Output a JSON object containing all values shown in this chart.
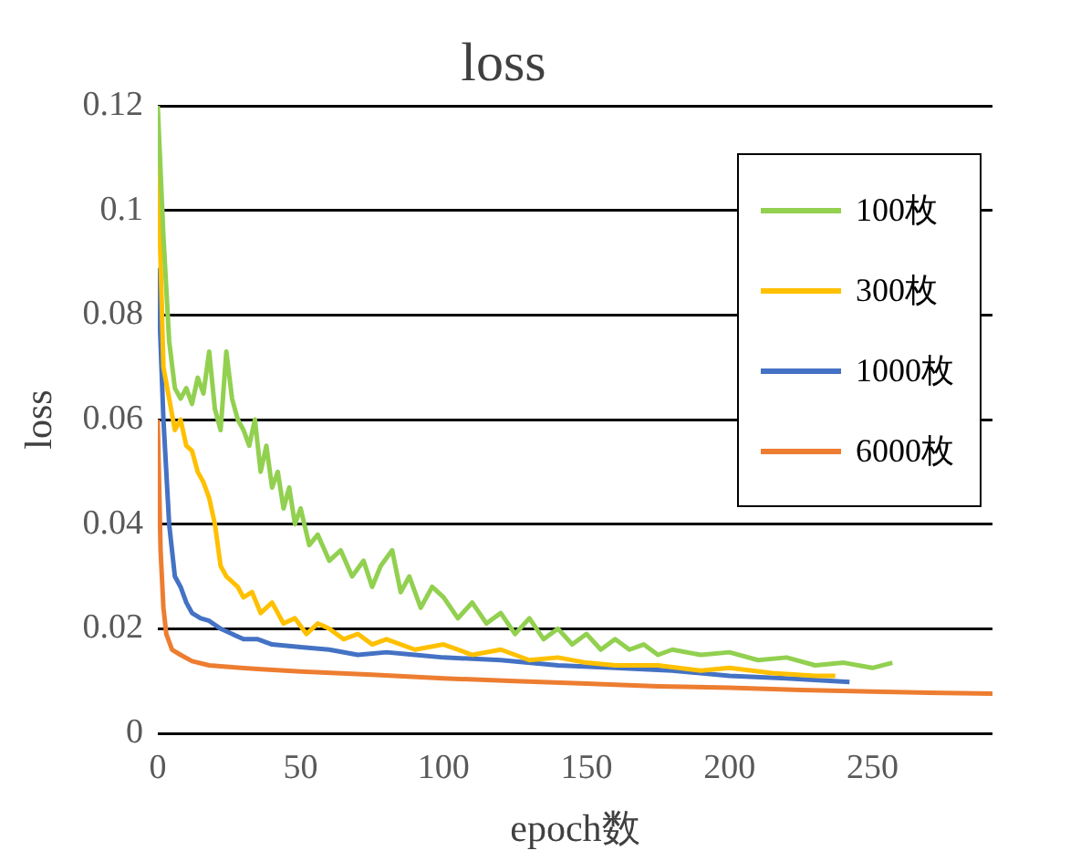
{
  "chart_data": {
    "type": "line",
    "title": "loss",
    "xlabel": "epoch数",
    "ylabel": "loss",
    "xlim": [
      0,
      292
    ],
    "xticks": [
      0,
      50,
      100,
      150,
      200,
      250
    ],
    "ylim": [
      0,
      0.12
    ],
    "yticks": [
      0,
      0.02,
      0.04,
      0.06,
      0.08,
      0.1,
      0.12
    ],
    "grid": "y",
    "legend": "top right",
    "marker": "none",
    "line_style": "solid",
    "series": [
      {
        "name": "100枚",
        "color": "#92d050",
        "x": [
          0,
          2,
          4,
          6,
          8,
          10,
          12,
          14,
          16,
          18,
          20,
          22,
          24,
          26,
          28,
          30,
          32,
          34,
          36,
          38,
          40,
          42,
          44,
          46,
          48,
          50,
          53,
          56,
          60,
          64,
          68,
          72,
          75,
          78,
          82,
          85,
          88,
          92,
          96,
          100,
          105,
          110,
          115,
          120,
          125,
          130,
          135,
          140,
          145,
          150,
          155,
          160,
          165,
          170,
          175,
          180,
          190,
          200,
          210,
          220,
          230,
          240,
          250,
          257
        ],
        "values": [
          0.12,
          0.095,
          0.075,
          0.066,
          0.064,
          0.066,
          0.063,
          0.068,
          0.065,
          0.073,
          0.062,
          0.058,
          0.073,
          0.064,
          0.06,
          0.058,
          0.055,
          0.06,
          0.05,
          0.055,
          0.047,
          0.05,
          0.043,
          0.047,
          0.04,
          0.043,
          0.036,
          0.038,
          0.033,
          0.035,
          0.03,
          0.033,
          0.028,
          0.032,
          0.035,
          0.027,
          0.03,
          0.024,
          0.028,
          0.026,
          0.022,
          0.025,
          0.021,
          0.023,
          0.019,
          0.022,
          0.018,
          0.02,
          0.017,
          0.019,
          0.016,
          0.018,
          0.016,
          0.017,
          0.015,
          0.016,
          0.015,
          0.0155,
          0.014,
          0.0145,
          0.013,
          0.0135,
          0.0125,
          0.0135
        ]
      },
      {
        "name": "300枚",
        "color": "#ffc000",
        "x": [
          0,
          1,
          2,
          4,
          6,
          8,
          10,
          12,
          14,
          16,
          18,
          20,
          22,
          24,
          26,
          28,
          30,
          33,
          36,
          40,
          44,
          48,
          52,
          56,
          60,
          65,
          70,
          75,
          80,
          90,
          100,
          110,
          120,
          130,
          140,
          150,
          160,
          175,
          190,
          200,
          215,
          230,
          237
        ],
        "values": [
          0.112,
          0.09,
          0.07,
          0.064,
          0.058,
          0.06,
          0.055,
          0.054,
          0.05,
          0.048,
          0.045,
          0.04,
          0.032,
          0.03,
          0.029,
          0.028,
          0.026,
          0.027,
          0.023,
          0.025,
          0.021,
          0.022,
          0.019,
          0.021,
          0.02,
          0.018,
          0.019,
          0.017,
          0.018,
          0.016,
          0.017,
          0.015,
          0.016,
          0.014,
          0.0145,
          0.0135,
          0.013,
          0.013,
          0.012,
          0.0125,
          0.0115,
          0.011,
          0.011
        ]
      },
      {
        "name": "1000枚",
        "color": "#4472c4",
        "x": [
          0,
          2,
          4,
          6,
          8,
          10,
          12,
          15,
          18,
          22,
          26,
          30,
          35,
          40,
          50,
          60,
          70,
          80,
          90,
          100,
          120,
          140,
          160,
          180,
          200,
          220,
          242
        ],
        "values": [
          0.089,
          0.06,
          0.04,
          0.03,
          0.028,
          0.025,
          0.023,
          0.022,
          0.0215,
          0.02,
          0.019,
          0.018,
          0.018,
          0.017,
          0.0165,
          0.016,
          0.015,
          0.0155,
          0.015,
          0.0145,
          0.014,
          0.013,
          0.0125,
          0.012,
          0.011,
          0.0105,
          0.0098
        ]
      },
      {
        "name": "6000枚",
        "color": "#ed7d31",
        "x": [
          0,
          1,
          2,
          3,
          5,
          8,
          12,
          18,
          25,
          35,
          50,
          75,
          100,
          125,
          150,
          175,
          200,
          225,
          250,
          275,
          292
        ],
        "values": [
          0.06,
          0.035,
          0.024,
          0.019,
          0.016,
          0.015,
          0.0138,
          0.013,
          0.0127,
          0.0123,
          0.0118,
          0.0112,
          0.0105,
          0.01,
          0.0095,
          0.009,
          0.0087,
          0.0083,
          0.008,
          0.0077,
          0.0076
        ]
      }
    ]
  }
}
